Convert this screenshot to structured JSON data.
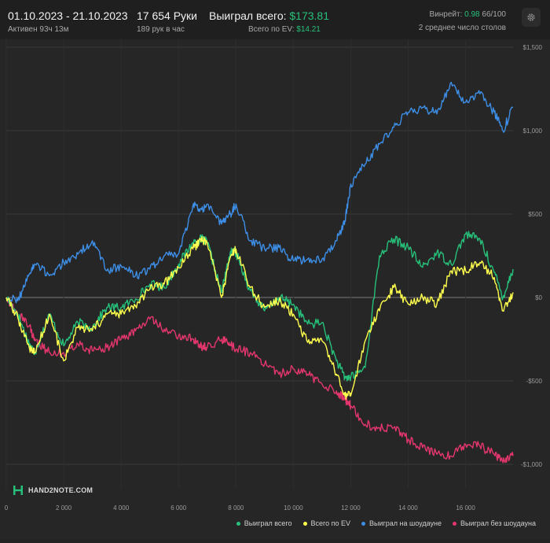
{
  "header": {
    "date_range": "01.10.2023 - 21.10.2023",
    "active_time": "Активен 93ч 13м",
    "hands": "17 654 Руки",
    "hands_per_hour": "189 рук в час",
    "won_total_label": "Выиграл всего: ",
    "won_total_value": "$173.81",
    "ev_total_label": "Всего по EV: ",
    "ev_total_value": "$14.21",
    "winrate_label": "Винрейт: ",
    "winrate_value": "0.98",
    "winrate_rest": " 66/100",
    "avg_tables": "2 среднее число столов"
  },
  "logo": {
    "text": "HAND2NOTE.COM"
  },
  "colors": {
    "won_total": "#27c07a",
    "ev_total": "#ffff4d",
    "showdown": "#3d8ee6",
    "non_showdown": "#e3366d",
    "accent_green": "#27c07a"
  },
  "chart_data": {
    "type": "line",
    "xlim": [
      0,
      17654
    ],
    "ylim": [
      -1000,
      1500
    ],
    "x_ticks": [
      0,
      2000,
      4000,
      6000,
      8000,
      10000,
      12000,
      14000,
      16000
    ],
    "x_tick_labels": [
      "0",
      "2 000",
      "4 000",
      "6 000",
      "8 000",
      "10 000",
      "12 000",
      "14 000",
      "16 000"
    ],
    "y_ticks": [
      1500,
      1000,
      500,
      0,
      -500,
      -1000
    ],
    "y_tick_labels": [
      "$1,500",
      "$1,000",
      "$500",
      "$0",
      "-$500",
      "-$1,000"
    ],
    "grid": true,
    "legend_position": "bottom-right",
    "x": [
      0,
      400,
      800,
      1000,
      1500,
      2000,
      2500,
      3000,
      3500,
      4000,
      4500,
      5000,
      5500,
      6000,
      6500,
      6800,
      7000,
      7500,
      7800,
      8000,
      8500,
      9000,
      9500,
      10000,
      10500,
      11000,
      11500,
      11800,
      12000,
      12500,
      13000,
      13500,
      14000,
      14500,
      15000,
      15500,
      16000,
      16500,
      17000,
      17300,
      17654
    ],
    "series": [
      {
        "name": "Выиграл всего",
        "color": "#27c07a",
        "values": [
          0,
          -100,
          -280,
          -330,
          -100,
          -290,
          -150,
          -180,
          -60,
          -60,
          -10,
          80,
          60,
          200,
          330,
          350,
          330,
          30,
          270,
          270,
          40,
          -80,
          0,
          -40,
          -160,
          -150,
          -380,
          -480,
          -480,
          -420,
          250,
          350,
          300,
          180,
          270,
          200,
          380,
          350,
          150,
          0,
          170
        ]
      },
      {
        "name": "Всего по EV",
        "color": "#ffff4d",
        "values": [
          0,
          -120,
          -300,
          -330,
          -100,
          -380,
          -180,
          -200,
          -100,
          -100,
          -50,
          50,
          80,
          180,
          290,
          350,
          330,
          0,
          240,
          290,
          60,
          -60,
          -20,
          -100,
          -270,
          -260,
          -460,
          -590,
          -590,
          -260,
          -80,
          60,
          -40,
          0,
          -40,
          160,
          160,
          210,
          120,
          -80,
          30
        ]
      },
      {
        "name": "Выиграл на шоудауне",
        "color": "#3d8ee6",
        "values": [
          0,
          -20,
          140,
          200,
          130,
          210,
          260,
          340,
          160,
          190,
          130,
          170,
          250,
          260,
          550,
          530,
          560,
          440,
          500,
          560,
          340,
          290,
          300,
          220,
          230,
          230,
          340,
          460,
          680,
          800,
          920,
          1020,
          1110,
          1140,
          1100,
          1290,
          1170,
          1220,
          1110,
          1000,
          1140
        ]
      },
      {
        "name": "Выиграл без шоудауна",
        "color": "#e3366d",
        "values": [
          0,
          -100,
          -170,
          -260,
          -330,
          -330,
          -280,
          -320,
          -300,
          -250,
          -200,
          -130,
          -190,
          -230,
          -250,
          -290,
          -300,
          -250,
          -280,
          -310,
          -330,
          -400,
          -460,
          -430,
          -460,
          -520,
          -560,
          -610,
          -650,
          -760,
          -780,
          -780,
          -850,
          -900,
          -940,
          -950,
          -880,
          -890,
          -940,
          -990,
          -950
        ]
      }
    ]
  }
}
